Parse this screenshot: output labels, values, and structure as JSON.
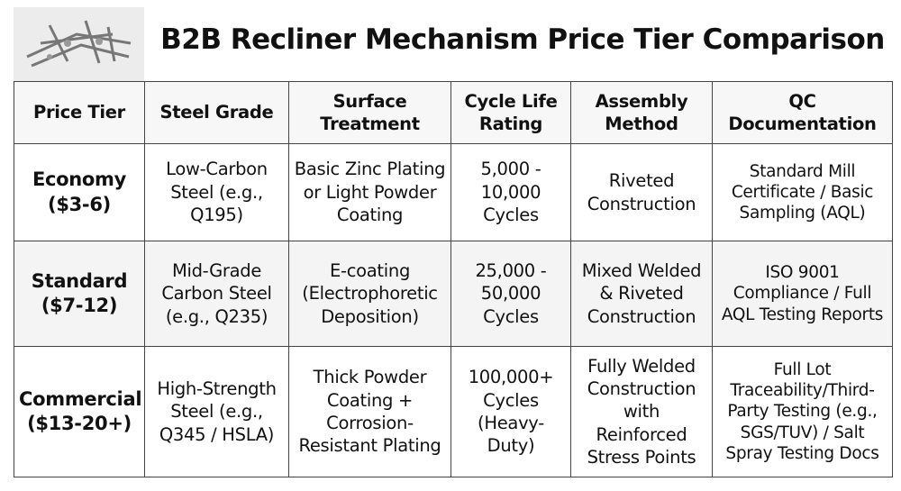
{
  "header": {
    "title": "B2B Recliner Mechanism Price Tier Comparison"
  },
  "table": {
    "columns": [
      "Price Tier",
      "Steel Grade",
      "Surface Treatment",
      "Cycle Life Rating",
      "Assembly Method",
      "QC Documentation"
    ],
    "rows": [
      [
        "Economy ($3-6)",
        "Low-Carbon Steel (e.g., Q195)",
        "Basic Zinc Plating or Light Powder Coating",
        "5,000 - 10,000 Cycles",
        "Riveted Construction",
        "Standard Mill Certificate / Basic Sampling (AQL)"
      ],
      [
        "Standard ($7-12)",
        "Mid-Grade Carbon Steel (e.g., Q235)",
        "E-coating (Electrophoretic Deposition)",
        "25,000 - 50,000 Cycles",
        "Mixed Welded & Riveted Construction",
        "ISO 9001 Compliance / Full AQL Testing Reports"
      ],
      [
        "Commercial ($13-20+)",
        "High-Strength Steel (e.g., Q345 / HSLA)",
        "Thick Powder Coating + Corrosion-Resistant Plating",
        "100,000+ Cycles (Heavy-Duty)",
        "Fully Welded Construction with Reinforced Stress Points",
        "Full Lot Traceability/Third-Party Testing (e.g., SGS/TUV) / Salt Spray Testing Docs"
      ]
    ]
  }
}
